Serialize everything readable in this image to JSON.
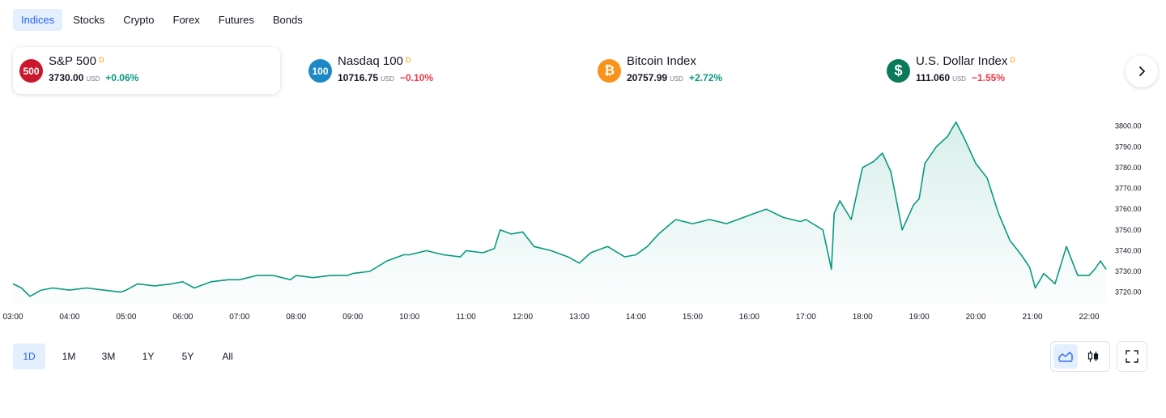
{
  "tabs": [
    {
      "label": "Indices",
      "active": true
    },
    {
      "label": "Stocks",
      "active": false
    },
    {
      "label": "Crypto",
      "active": false
    },
    {
      "label": "Forex",
      "active": false
    },
    {
      "label": "Futures",
      "active": false
    },
    {
      "label": "Bonds",
      "active": false
    }
  ],
  "cards": [
    {
      "logo_text": "500",
      "logo_color": "#c9182b",
      "name": "S&P 500",
      "marker": "D",
      "price": "3730.00",
      "currency": "USD",
      "change": "+0.06%",
      "direction": "up",
      "active": true
    },
    {
      "logo_text": "100",
      "logo_color": "#1e88c7",
      "name": "Nasdaq 100",
      "marker": "D",
      "price": "10716.75",
      "currency": "USD",
      "change": "−0.10%",
      "direction": "down",
      "active": false
    },
    {
      "logo_text": "₿",
      "logo_color": "#f7931a",
      "name": "Bitcoin Index",
      "marker": "",
      "price": "20757.99",
      "currency": "USD",
      "change": "+2.72%",
      "direction": "up",
      "active": false
    },
    {
      "logo_text": "$",
      "logo_color": "#0b7a5a",
      "name": "U.S. Dollar Index",
      "marker": "D",
      "price": "111.060",
      "currency": "USD",
      "change": "−1.55%",
      "direction": "down",
      "active": false
    }
  ],
  "next_icon": "chevron-right-icon",
  "chart_data": {
    "type": "area",
    "line_color": "#089981",
    "grid": false,
    "x_unit": "hour",
    "xlim": [
      3.0,
      22.3
    ],
    "ylim": [
      3714,
      3803
    ],
    "y_ticks": [
      "3720.00",
      "3730.00",
      "3740.00",
      "3750.00",
      "3760.00",
      "3770.00",
      "3780.00",
      "3790.00",
      "3800.00"
    ],
    "x_ticks": [
      "03:00",
      "04:00",
      "05:00",
      "06:00",
      "07:00",
      "08:00",
      "09:00",
      "10:00",
      "11:00",
      "12:00",
      "13:00",
      "14:00",
      "15:00",
      "16:00",
      "17:00",
      "18:00",
      "19:00",
      "20:00",
      "21:00",
      "22:00"
    ],
    "x": [
      3.0,
      3.15,
      3.3,
      3.5,
      3.7,
      4.0,
      4.3,
      4.6,
      4.9,
      5.0,
      5.2,
      5.5,
      5.8,
      6.0,
      6.2,
      6.5,
      6.8,
      7.0,
      7.3,
      7.6,
      7.9,
      8.0,
      8.3,
      8.6,
      8.9,
      9.0,
      9.3,
      9.6,
      9.9,
      10.0,
      10.3,
      10.6,
      10.9,
      11.0,
      11.3,
      11.5,
      11.6,
      11.8,
      12.0,
      12.2,
      12.5,
      12.8,
      13.0,
      13.2,
      13.5,
      13.8,
      14.0,
      14.2,
      14.4,
      14.7,
      15.0,
      15.3,
      15.6,
      15.9,
      16.0,
      16.3,
      16.6,
      16.9,
      17.0,
      17.3,
      17.45,
      17.5,
      17.6,
      17.8,
      18.0,
      18.2,
      18.35,
      18.5,
      18.7,
      18.9,
      19.0,
      19.1,
      19.3,
      19.5,
      19.65,
      19.8,
      20.0,
      20.2,
      20.4,
      20.6,
      20.8,
      20.95,
      21.05,
      21.2,
      21.4,
      21.6,
      21.8,
      22.0,
      22.1,
      22.2,
      22.3
    ],
    "values": [
      3724,
      3722,
      3718,
      3721,
      3722,
      3721,
      3722,
      3721,
      3720,
      3721,
      3724,
      3723,
      3724,
      3725,
      3722,
      3725,
      3726,
      3726,
      3728,
      3728,
      3726,
      3728,
      3727,
      3728,
      3728,
      3729,
      3730,
      3735,
      3738,
      3738,
      3740,
      3738,
      3737,
      3740,
      3739,
      3741,
      3750,
      3748,
      3749,
      3742,
      3740,
      3737,
      3734,
      3739,
      3742,
      3737,
      3738,
      3742,
      3748,
      3755,
      3753,
      3755,
      3753,
      3756,
      3757,
      3760,
      3756,
      3754,
      3755,
      3750,
      3731,
      3758,
      3764,
      3755,
      3780,
      3783,
      3787,
      3778,
      3750,
      3762,
      3765,
      3782,
      3790,
      3795,
      3802,
      3794,
      3782,
      3775,
      3758,
      3745,
      3738,
      3732,
      3722,
      3729,
      3724,
      3742,
      3728,
      3728,
      3731,
      3735,
      3731
    ]
  },
  "ranges": [
    {
      "label": "1D",
      "active": true
    },
    {
      "label": "1M",
      "active": false
    },
    {
      "label": "3M",
      "active": false
    },
    {
      "label": "1Y",
      "active": false
    },
    {
      "label": "5Y",
      "active": false
    },
    {
      "label": "All",
      "active": false
    }
  ],
  "controls": {
    "area_icon": "area-chart-icon",
    "candle_icon": "candlestick-icon",
    "fullscreen_icon": "fullscreen-icon"
  }
}
